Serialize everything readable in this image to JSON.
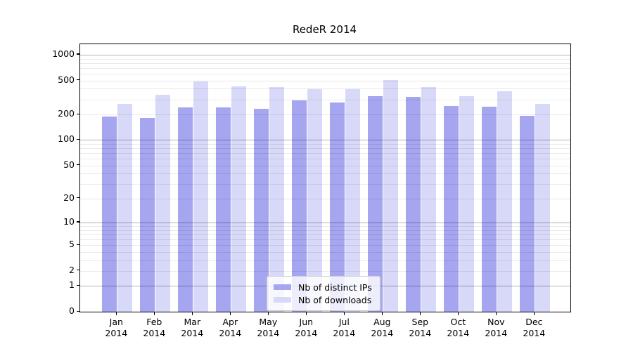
{
  "title": "RedeR 2014",
  "colors": {
    "distinct_ips": "#a5a5f0",
    "downloads": "#d8d8f8",
    "grid_major": "rgba(0,0,0,0.30)",
    "grid_minor": "rgba(0,0,0,0.085)",
    "axis": "#000000",
    "legend_border": "#cccccc",
    "legend_background": "rgba(255,255,255,0.8)"
  },
  "legend": {
    "items": [
      {
        "label": "Nb of distinct IPs",
        "swatch": "distinct-ips-swatch"
      },
      {
        "label": "Nb of downloads",
        "swatch": "downloads-swatch"
      }
    ]
  },
  "chart_data": {
    "type": "bar",
    "title": "RedeR 2014",
    "categories": [
      "Jan 2014",
      "Feb 2014",
      "Mar 2014",
      "Apr 2014",
      "May 2014",
      "Jun 2014",
      "Jul 2014",
      "Aug 2014",
      "Sep 2014",
      "Oct 2014",
      "Nov 2014",
      "Dec 2014"
    ],
    "series": [
      {
        "name": "Nb of distinct IPs",
        "color": "#a5a5f0",
        "values": [
          190,
          182,
          243,
          243,
          235,
          293,
          275,
          326,
          323,
          250,
          248,
          194
        ]
      },
      {
        "name": "Nb of downloads",
        "color": "#d8d8f8",
        "values": [
          264,
          337,
          486,
          423,
          415,
          397,
          394,
          504,
          415,
          329,
          375,
          267
        ]
      }
    ],
    "xlabel": "",
    "ylabel": "",
    "yscale": "log10(1+x)",
    "yticks": [
      0,
      1,
      2,
      5,
      10,
      20,
      50,
      100,
      200,
      500,
      1000
    ],
    "grid_major": [
      1,
      10,
      100,
      1000
    ],
    "grid_minor": [
      2,
      3,
      4,
      5,
      6,
      7,
      8,
      9,
      20,
      30,
      40,
      50,
      60,
      70,
      80,
      90,
      200,
      300,
      400,
      500,
      600,
      700,
      800,
      900
    ],
    "ylim": [
      0,
      1320
    ],
    "grid": true,
    "legend_position": "inside lower-center"
  }
}
